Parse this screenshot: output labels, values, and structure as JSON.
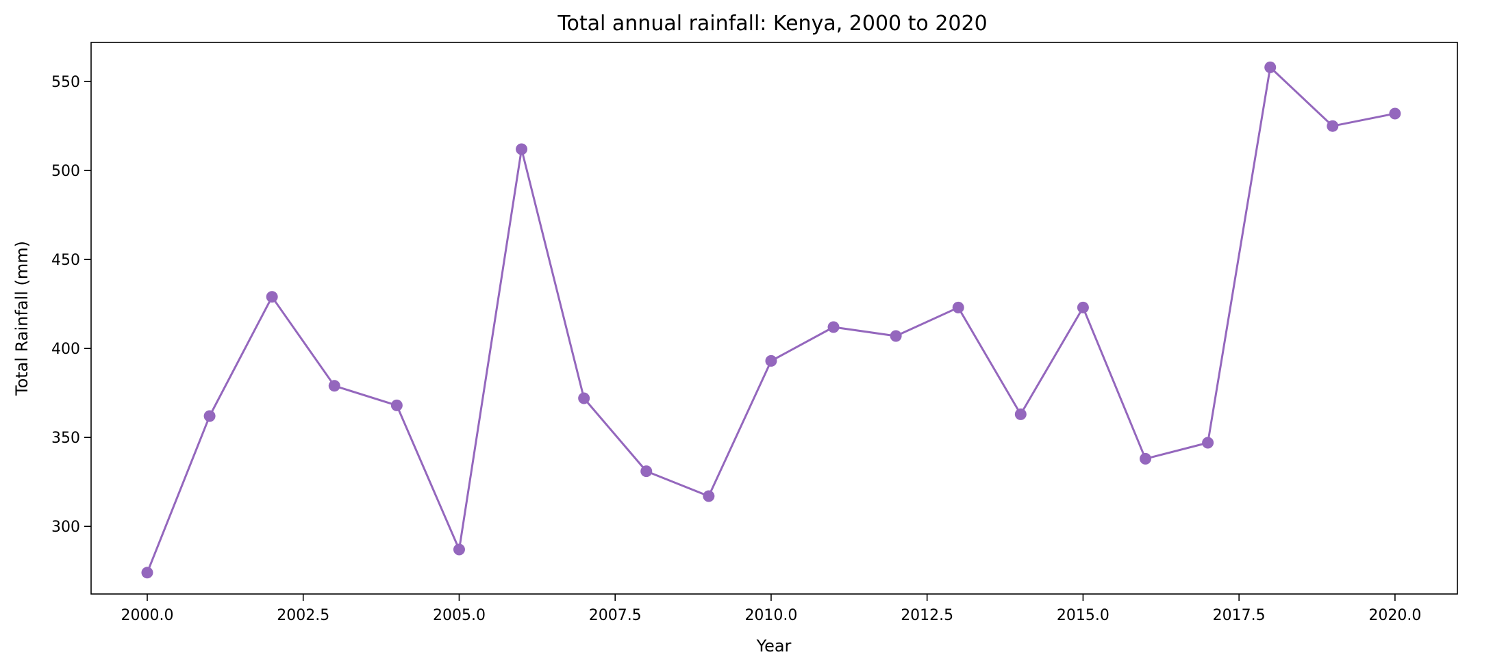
{
  "chart_data": {
    "type": "line",
    "title": "Total annual rainfall: Kenya, 2000 to 2020",
    "xlabel": "Year",
    "ylabel": "Total Rainfall (mm)",
    "xlim": [
      1999.1,
      2021.0
    ],
    "ylim": [
      262,
      572
    ],
    "x_ticks": [
      2000.0,
      2002.5,
      2005.0,
      2007.5,
      2010.0,
      2012.5,
      2015.0,
      2017.5,
      2020.0
    ],
    "x_tick_labels": [
      "2000.0",
      "2002.5",
      "2005.0",
      "2007.5",
      "2010.0",
      "2012.5",
      "2015.0",
      "2017.5",
      "2020.0"
    ],
    "y_ticks": [
      300,
      350,
      400,
      450,
      500,
      550
    ],
    "y_tick_labels": [
      "300",
      "350",
      "400",
      "450",
      "500",
      "550"
    ],
    "grid": false,
    "legend": false,
    "series": [
      {
        "color": "#9467bd",
        "marker": "circle",
        "x": [
          2000,
          2001,
          2002,
          2003,
          2004,
          2005,
          2006,
          2007,
          2008,
          2009,
          2010,
          2011,
          2012,
          2013,
          2014,
          2015,
          2016,
          2017,
          2018,
          2019,
          2020
        ],
        "y": [
          274,
          362,
          429,
          379,
          368,
          287,
          512,
          372,
          331,
          317,
          393,
          412,
          407,
          423,
          363,
          423,
          338,
          347,
          558,
          525,
          532
        ]
      }
    ]
  }
}
